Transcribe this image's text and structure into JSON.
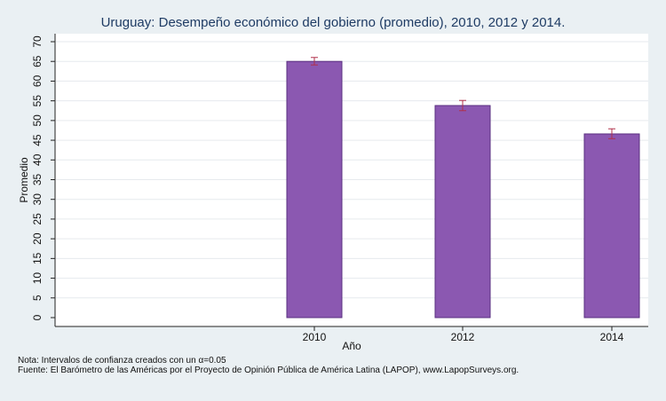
{
  "chart_data": {
    "type": "bar",
    "title": "Uruguay: Desempeño económico del gobierno (promedio), 2010, 2012 y 2014.",
    "xlabel": "Año",
    "ylabel": "Promedio",
    "ylim": [
      0,
      70
    ],
    "yticks": [
      0,
      5,
      10,
      15,
      20,
      25,
      30,
      35,
      40,
      45,
      50,
      55,
      60,
      65,
      70
    ],
    "categories": [
      "2010",
      "2012",
      "2014"
    ],
    "values": [
      65.0,
      53.8,
      46.6
    ],
    "ci_low": [
      64.1,
      52.5,
      45.4
    ],
    "ci_high": [
      66.0,
      55.1,
      47.9
    ],
    "grid": true,
    "bar_color": "#8b58b1",
    "bar_edge_color": "#5a2f80",
    "errorbar_color": "#b0304a"
  },
  "notes": {
    "line1": "Nota: Intervalos de confianza creados con un α=0.05",
    "line2": "Fuente: El Barómetro de las Américas por el Proyecto de Opinión Pública de América Latina (LAPOP), www.LapopSurveys.org."
  }
}
